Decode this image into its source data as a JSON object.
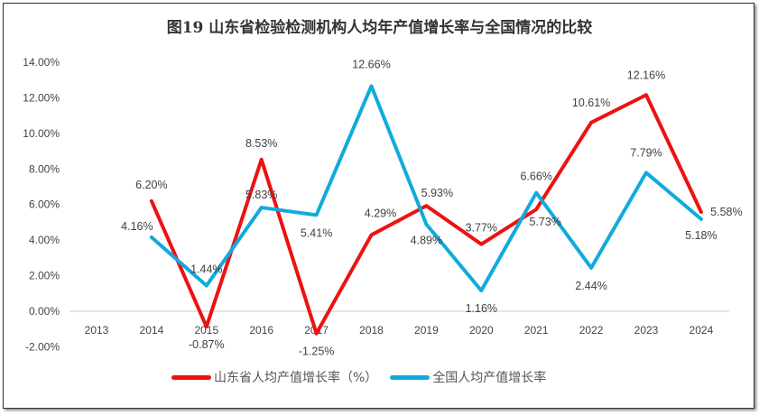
{
  "chart_data": {
    "type": "line",
    "title": "图19   山东省检验检测机构人均年产值增长率与全国情况的比较",
    "categories": [
      "2013",
      "2014",
      "2015",
      "2016",
      "2017",
      "2018",
      "2019",
      "2020",
      "2021",
      "2022",
      "2023",
      "2024"
    ],
    "ylim": [
      -2,
      14
    ],
    "yticks": [
      "-2.00%",
      "0.00%",
      "2.00%",
      "4.00%",
      "6.00%",
      "8.00%",
      "10.00%",
      "12.00%",
      "14.00%"
    ],
    "grid": false,
    "legend": "bottom",
    "series": [
      {
        "name": "山东省人均产值增长率（%）",
        "color": "#ee1111",
        "values": [
          null,
          6.2,
          -0.87,
          8.53,
          -1.25,
          4.29,
          5.93,
          3.77,
          5.73,
          10.61,
          12.16,
          5.58
        ],
        "labels": [
          "",
          "6.20%",
          "-0.87%",
          "8.53%",
          "-1.25%",
          "4.29%",
          "5.93%",
          "3.77%",
          "5.73%",
          "10.61%",
          "12.16%",
          "5.58%"
        ]
      },
      {
        "name": "全国人均产值增长率",
        "color": "#11aadd",
        "values": [
          null,
          4.16,
          1.44,
          5.83,
          5.41,
          12.66,
          4.89,
          1.16,
          6.66,
          2.44,
          7.79,
          5.18
        ],
        "labels": [
          "",
          "4.16%",
          "1.44%",
          "5.83%",
          "5.41%",
          "12.66%",
          "4.89%",
          "1.16%",
          "6.66%",
          "2.44%",
          "7.79%",
          "5.18%"
        ]
      }
    ]
  }
}
